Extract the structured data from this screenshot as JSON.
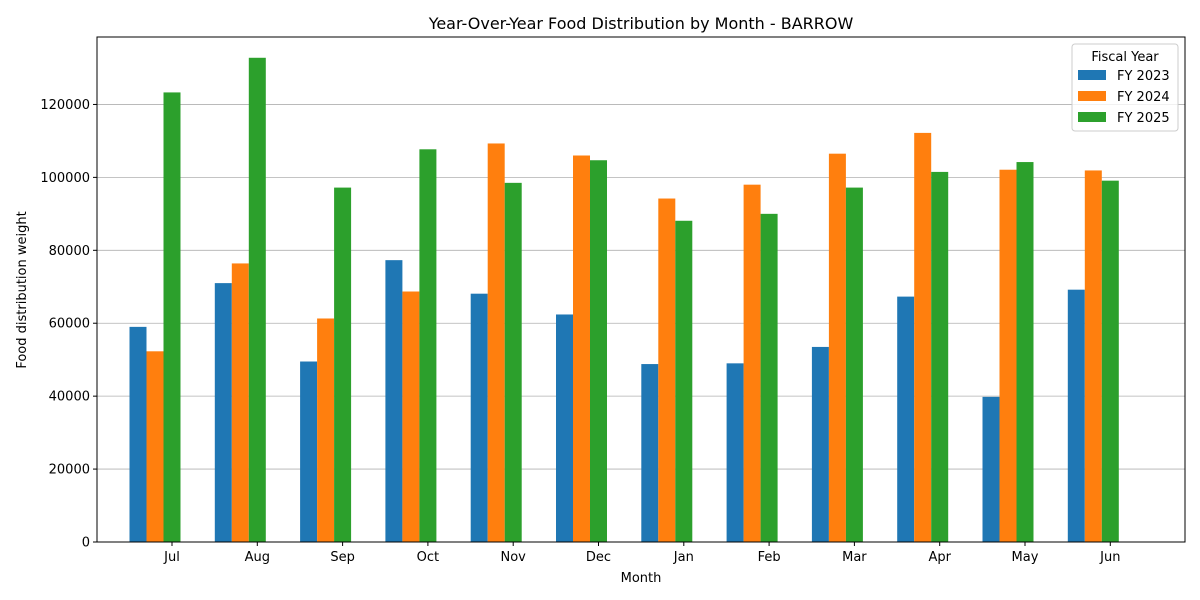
{
  "chart_data": {
    "type": "bar",
    "title": "Year-Over-Year Food Distribution by Month - BARROW",
    "xlabel": "Month",
    "ylabel": "Food distribution weight",
    "categories": [
      "Jul",
      "Aug",
      "Sep",
      "Oct",
      "Nov",
      "Dec",
      "Jan",
      "Feb",
      "Mar",
      "Apr",
      "May",
      "Jun"
    ],
    "series": [
      {
        "name": "FY 2023",
        "color": "#1f77b4",
        "values": [
          59000,
          71000,
          49500,
          77300,
          68100,
          62400,
          48800,
          49000,
          53500,
          67300,
          39800,
          69200
        ]
      },
      {
        "name": "FY 2024",
        "color": "#ff7f0e",
        "values": [
          52300,
          76400,
          61300,
          68700,
          109300,
          106000,
          94200,
          98000,
          106500,
          112200,
          102100,
          101900
        ]
      },
      {
        "name": "FY 2025",
        "color": "#2ca02c",
        "values": [
          123300,
          132800,
          97200,
          107700,
          98500,
          104700,
          88100,
          90000,
          97200,
          101500,
          104200,
          99100
        ]
      }
    ],
    "ylim": [
      0,
      138500
    ],
    "yticks": [
      0,
      20000,
      40000,
      60000,
      80000,
      100000,
      120000
    ],
    "ytick_labels": [
      "0",
      "20000",
      "40000",
      "60000",
      "80000",
      "100000",
      "120000"
    ],
    "grid": "y",
    "legend": {
      "title": "Fiscal Year",
      "placement": "top-right"
    }
  }
}
